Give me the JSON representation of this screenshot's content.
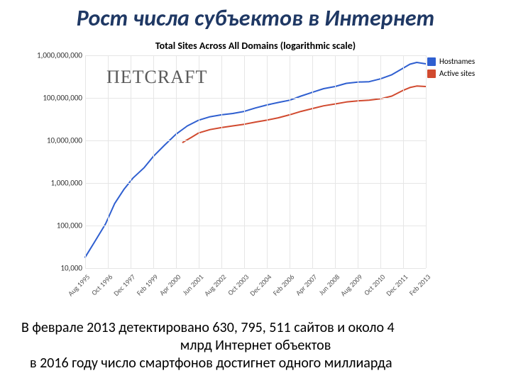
{
  "title": "Рост числа субъектов в Интернет",
  "chart": {
    "title": "Total Sites Across All Domains (logarithmic scale)",
    "type": "line",
    "yscale": "log",
    "ylim": [
      10000,
      1000000000
    ],
    "ylabels": [
      "10,000",
      "100,000",
      "1,000,000",
      "10,000,000",
      "100,000,000",
      "1,000,000,000"
    ],
    "yvalues": [
      10000,
      100000,
      1000000,
      10000000,
      100000000,
      1000000000
    ],
    "xlabels": [
      "Aug 1995",
      "Oct 1996",
      "Dec 1997",
      "Feb 1999",
      "Apr 2000",
      "Jun 2001",
      "Aug 2002",
      "Oct 2003",
      "Dec 2004",
      "Feb 2006",
      "Apr 2007",
      "Jun 2008",
      "Aug 2009",
      "Oct 2010",
      "Dec 2011",
      "Feb 2013"
    ],
    "grid_color": "#e6e6e6",
    "background_color": "#ffffff",
    "line_width": 2.0,
    "series": [
      {
        "name": "Hostnames",
        "color": "#2f5fd0",
        "points": [
          [
            0,
            18000
          ],
          [
            0.4,
            40000
          ],
          [
            0.9,
            110000
          ],
          [
            1.3,
            330000
          ],
          [
            1.7,
            700000
          ],
          [
            2.1,
            1300000
          ],
          [
            2.6,
            2300000
          ],
          [
            3.0,
            4200000
          ],
          [
            3.5,
            7800000
          ],
          [
            4.0,
            14000000
          ],
          [
            4.5,
            22000000
          ],
          [
            5.0,
            30000000
          ],
          [
            5.5,
            36000000
          ],
          [
            6.0,
            40000000
          ],
          [
            6.5,
            43000000
          ],
          [
            7.0,
            48000000
          ],
          [
            7.5,
            58000000
          ],
          [
            8.0,
            68000000
          ],
          [
            8.5,
            78000000
          ],
          [
            9.0,
            88000000
          ],
          [
            9.5,
            110000000
          ],
          [
            10.0,
            135000000
          ],
          [
            10.5,
            165000000
          ],
          [
            11.0,
            185000000
          ],
          [
            11.5,
            220000000
          ],
          [
            12.0,
            235000000
          ],
          [
            12.5,
            240000000
          ],
          [
            13.0,
            280000000
          ],
          [
            13.5,
            350000000
          ],
          [
            14.0,
            500000000
          ],
          [
            14.3,
            620000000
          ],
          [
            14.6,
            680000000
          ],
          [
            15.0,
            630000000
          ]
        ]
      },
      {
        "name": "Active sites",
        "color": "#d14a2f",
        "points": [
          [
            4.3,
            9000000
          ],
          [
            4.7,
            12000000
          ],
          [
            5.0,
            15000000
          ],
          [
            5.5,
            18000000
          ],
          [
            6.0,
            20000000
          ],
          [
            6.5,
            22000000
          ],
          [
            7.0,
            24000000
          ],
          [
            7.5,
            27000000
          ],
          [
            8.0,
            30000000
          ],
          [
            8.5,
            34000000
          ],
          [
            9.0,
            40000000
          ],
          [
            9.5,
            48000000
          ],
          [
            10.0,
            56000000
          ],
          [
            10.5,
            65000000
          ],
          [
            11.0,
            72000000
          ],
          [
            11.5,
            80000000
          ],
          [
            12.0,
            85000000
          ],
          [
            12.5,
            88000000
          ],
          [
            13.0,
            95000000
          ],
          [
            13.5,
            110000000
          ],
          [
            14.0,
            150000000
          ],
          [
            14.3,
            175000000
          ],
          [
            14.6,
            190000000
          ],
          [
            15.0,
            185000000
          ]
        ]
      }
    ],
    "legend": {
      "position": "top-right",
      "items": [
        {
          "label": "Hostnames",
          "color": "#2f5fd0"
        },
        {
          "label": "Active sites",
          "color": "#d14a2f"
        }
      ]
    },
    "watermark": "ΠETCRAFT"
  },
  "caption": {
    "line1": "В феврале 2013 детектировано 630, 795, 511 сайтов и около 4",
    "line2": "млрд  Интернет объектов",
    "line3": "в 2016 году число смартфонов достигнет одного миллиарда"
  }
}
